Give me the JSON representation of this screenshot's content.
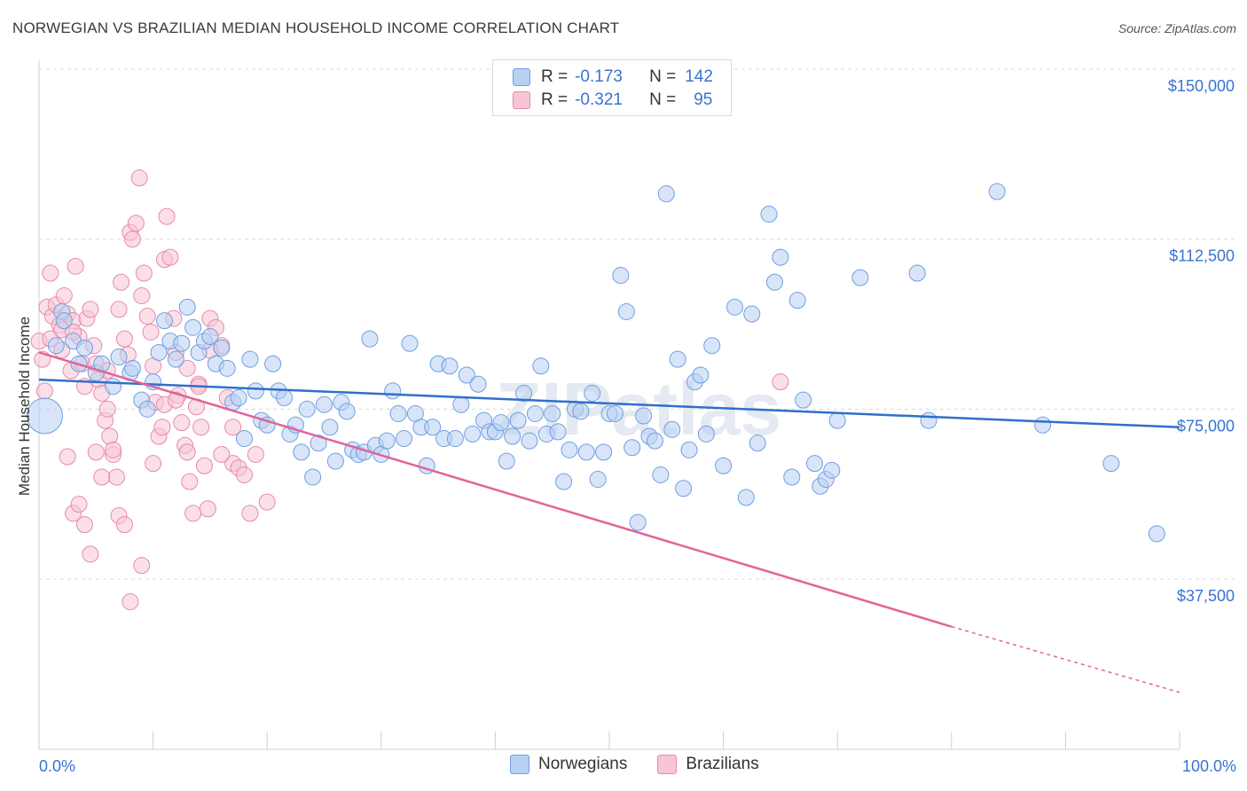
{
  "title": "NORWEGIAN VS BRAZILIAN MEDIAN HOUSEHOLD INCOME CORRELATION CHART",
  "source": "Source: ZipAtlas.com",
  "watermark": "ZIPatlas",
  "legend": {
    "rows": [
      {
        "r_label": "R =",
        "r_value": "-0.173",
        "n_label": "N =",
        "n_value": "142"
      },
      {
        "r_label": "R =",
        "r_value": "-0.321",
        "n_label": "N =",
        "n_value": "95"
      }
    ]
  },
  "bottom_legend": {
    "norwegians": "Norwegians",
    "brazilians": "Brazilians"
  },
  "colors": {
    "blue_fill": "#b8d0f2",
    "blue_stroke": "#6f9fe0",
    "blue_line": "#2f6fcc",
    "pink_fill": "#f7c5d5",
    "pink_stroke": "#e889a8",
    "pink_line": "#e0649a",
    "axis_text": "#3874d0",
    "grid": "#d9d9d9"
  },
  "chart_data": {
    "type": "scatter",
    "title": "NORWEGIAN VS BRAZILIAN MEDIAN HOUSEHOLD INCOME CORRELATION CHART",
    "xlabel": "",
    "ylabel": "Median Household Income",
    "xlim": [
      0,
      100
    ],
    "ylim": [
      10000,
      155000
    ],
    "x_tick_labels": [
      "0.0%",
      "100.0%"
    ],
    "y_ticks": [
      37500,
      75000,
      112500,
      150000
    ],
    "y_tick_labels": [
      "$37,500",
      "$75,000",
      "$112,500",
      "$150,000"
    ],
    "grid": true,
    "series": [
      {
        "name": "Norwegians",
        "r": -0.173,
        "n": 142,
        "trend": {
          "x0": 0,
          "y0": 81500,
          "x1": 100,
          "y1": 71000
        },
        "points": [
          [
            0.5,
            73500
          ],
          [
            1.5,
            89000
          ],
          [
            2,
            96500
          ],
          [
            2.2,
            94500
          ],
          [
            3,
            90000
          ],
          [
            3.5,
            85000
          ],
          [
            4,
            88500
          ],
          [
            5,
            83000
          ],
          [
            5.5,
            85000
          ],
          [
            6.5,
            80000
          ],
          [
            7,
            86500
          ],
          [
            8,
            83000
          ],
          [
            8.2,
            84000
          ],
          [
            9,
            77000
          ],
          [
            9.5,
            75000
          ],
          [
            10,
            81000
          ],
          [
            10.5,
            87500
          ],
          [
            11,
            94500
          ],
          [
            11.5,
            90000
          ],
          [
            12,
            86000
          ],
          [
            12.5,
            89500
          ],
          [
            13,
            97500
          ],
          [
            13.5,
            93000
          ],
          [
            14,
            87500
          ],
          [
            14.5,
            90000
          ],
          [
            15,
            91000
          ],
          [
            15.5,
            85000
          ],
          [
            16,
            88500
          ],
          [
            16.5,
            84000
          ],
          [
            17,
            76500
          ],
          [
            17.5,
            77500
          ],
          [
            18,
            68500
          ],
          [
            18.5,
            86000
          ],
          [
            19,
            79000
          ],
          [
            19.5,
            72500
          ],
          [
            20,
            71500
          ],
          [
            20.5,
            85000
          ],
          [
            21,
            79000
          ],
          [
            21.5,
            77500
          ],
          [
            22,
            69500
          ],
          [
            22.5,
            71500
          ],
          [
            23,
            65500
          ],
          [
            23.5,
            75000
          ],
          [
            24,
            60000
          ],
          [
            24.5,
            67500
          ],
          [
            25,
            76000
          ],
          [
            25.5,
            71000
          ],
          [
            26,
            63500
          ],
          [
            26.5,
            76500
          ],
          [
            27,
            74500
          ],
          [
            27.5,
            66000
          ],
          [
            28,
            65000
          ],
          [
            28.5,
            65500
          ],
          [
            29,
            90500
          ],
          [
            29.5,
            67000
          ],
          [
            30,
            65000
          ],
          [
            30.5,
            68000
          ],
          [
            31,
            79000
          ],
          [
            31.5,
            74000
          ],
          [
            32,
            68500
          ],
          [
            32.5,
            89500
          ],
          [
            33,
            74000
          ],
          [
            33.5,
            71000
          ],
          [
            34,
            62500
          ],
          [
            34.5,
            71000
          ],
          [
            35,
            85000
          ],
          [
            35.5,
            68500
          ],
          [
            36,
            84500
          ],
          [
            36.5,
            68500
          ],
          [
            37,
            76000
          ],
          [
            37.5,
            82500
          ],
          [
            38,
            69500
          ],
          [
            38.5,
            80500
          ],
          [
            39,
            72500
          ],
          [
            39.5,
            70000
          ],
          [
            40,
            70000
          ],
          [
            40.5,
            72000
          ],
          [
            41,
            63500
          ],
          [
            41.5,
            69000
          ],
          [
            42,
            72500
          ],
          [
            42.5,
            78500
          ],
          [
            43,
            68000
          ],
          [
            43.5,
            74000
          ],
          [
            44,
            84500
          ],
          [
            44.5,
            69500
          ],
          [
            45,
            74000
          ],
          [
            45.5,
            70000
          ],
          [
            46,
            59000
          ],
          [
            46.5,
            66000
          ],
          [
            47,
            75000
          ],
          [
            47.5,
            74500
          ],
          [
            48,
            65500
          ],
          [
            48.5,
            78500
          ],
          [
            49,
            59500
          ],
          [
            49.5,
            65500
          ],
          [
            50,
            74000
          ],
          [
            50.5,
            74000
          ],
          [
            51,
            104500
          ],
          [
            51.5,
            96500
          ],
          [
            52,
            66500
          ],
          [
            52.5,
            50000
          ],
          [
            53,
            73500
          ],
          [
            53.5,
            69000
          ],
          [
            54,
            68000
          ],
          [
            54.5,
            60500
          ],
          [
            55,
            122500
          ],
          [
            55.5,
            70500
          ],
          [
            56,
            86000
          ],
          [
            56.5,
            57500
          ],
          [
            57,
            66000
          ],
          [
            57.5,
            81000
          ],
          [
            58,
            82500
          ],
          [
            58.5,
            69500
          ],
          [
            59,
            89000
          ],
          [
            60,
            62500
          ],
          [
            61,
            97500
          ],
          [
            62,
            55500
          ],
          [
            62.5,
            96000
          ],
          [
            63,
            67500
          ],
          [
            64,
            118000
          ],
          [
            64.5,
            103000
          ],
          [
            65,
            108500
          ],
          [
            66,
            60000
          ],
          [
            66.5,
            99000
          ],
          [
            67,
            77000
          ],
          [
            68,
            63000
          ],
          [
            68.5,
            58000
          ],
          [
            69,
            59500
          ],
          [
            69.5,
            61500
          ],
          [
            70,
            72500
          ],
          [
            72,
            104000
          ],
          [
            77,
            105000
          ],
          [
            78,
            72500
          ],
          [
            84,
            123000
          ],
          [
            88,
            71500
          ],
          [
            94,
            63000
          ],
          [
            98,
            47500
          ]
        ]
      },
      {
        "name": "Brazilians",
        "r": -0.321,
        "n": 95,
        "trend": {
          "x0": 0,
          "y0": 87500,
          "x1": 80,
          "y1": 27000,
          "dash_to": {
            "x": 100,
            "y": 12500
          }
        },
        "points": [
          [
            0,
            90000
          ],
          [
            0.3,
            86000
          ],
          [
            0.5,
            79000
          ],
          [
            0.7,
            97500
          ],
          [
            1,
            105000
          ],
          [
            1.2,
            95500
          ],
          [
            1.5,
            98000
          ],
          [
            1.8,
            93500
          ],
          [
            2,
            88000
          ],
          [
            2.2,
            100000
          ],
          [
            2.5,
            96000
          ],
          [
            2.8,
            83500
          ],
          [
            3,
            94500
          ],
          [
            3.2,
            106500
          ],
          [
            3.5,
            91000
          ],
          [
            3.8,
            85000
          ],
          [
            4,
            80000
          ],
          [
            4.2,
            95000
          ],
          [
            4.5,
            97000
          ],
          [
            4.8,
            89000
          ],
          [
            5,
            85000
          ],
          [
            5.2,
            81500
          ],
          [
            5.5,
            78500
          ],
          [
            5.8,
            72500
          ],
          [
            6,
            83500
          ],
          [
            6.2,
            69000
          ],
          [
            6.5,
            65000
          ],
          [
            6.8,
            60000
          ],
          [
            7,
            97000
          ],
          [
            7.2,
            103000
          ],
          [
            7.5,
            90500
          ],
          [
            7.8,
            87000
          ],
          [
            8,
            114000
          ],
          [
            8.2,
            112500
          ],
          [
            8.5,
            116000
          ],
          [
            8.8,
            126000
          ],
          [
            9,
            100000
          ],
          [
            9.2,
            105000
          ],
          [
            9.5,
            95500
          ],
          [
            9.8,
            92000
          ],
          [
            10,
            84500
          ],
          [
            10.2,
            76500
          ],
          [
            10.5,
            69000
          ],
          [
            10.8,
            71000
          ],
          [
            11,
            108000
          ],
          [
            11.2,
            117500
          ],
          [
            11.5,
            108500
          ],
          [
            11.8,
            95000
          ],
          [
            12,
            87500
          ],
          [
            12.2,
            78000
          ],
          [
            12.5,
            72000
          ],
          [
            12.8,
            67000
          ],
          [
            13,
            65500
          ],
          [
            13.2,
            59000
          ],
          [
            13.5,
            52000
          ],
          [
            13.8,
            75500
          ],
          [
            14,
            80500
          ],
          [
            14.2,
            71000
          ],
          [
            14.5,
            62500
          ],
          [
            14.8,
            53000
          ],
          [
            15,
            95000
          ],
          [
            15.5,
            93000
          ],
          [
            16,
            89000
          ],
          [
            16.5,
            77500
          ],
          [
            17,
            63000
          ],
          [
            17.5,
            62000
          ],
          [
            18,
            60500
          ],
          [
            18.5,
            52000
          ],
          [
            19,
            65000
          ],
          [
            20,
            54500
          ],
          [
            2.5,
            64500
          ],
          [
            3,
            52000
          ],
          [
            3.5,
            54000
          ],
          [
            4,
            49500
          ],
          [
            4.5,
            43000
          ],
          [
            5,
            65500
          ],
          [
            5.5,
            60000
          ],
          [
            6,
            75000
          ],
          [
            6.5,
            66000
          ],
          [
            7,
            51500
          ],
          [
            7.5,
            49500
          ],
          [
            8,
            32500
          ],
          [
            9,
            40500
          ],
          [
            10,
            63000
          ],
          [
            11,
            76000
          ],
          [
            12,
            77000
          ],
          [
            13,
            84000
          ],
          [
            14,
            80000
          ],
          [
            15,
            88000
          ],
          [
            16,
            65000
          ],
          [
            17,
            71000
          ],
          [
            65,
            81000
          ],
          [
            1,
            90500
          ],
          [
            2,
            92500
          ],
          [
            3,
            92000
          ]
        ]
      }
    ]
  }
}
